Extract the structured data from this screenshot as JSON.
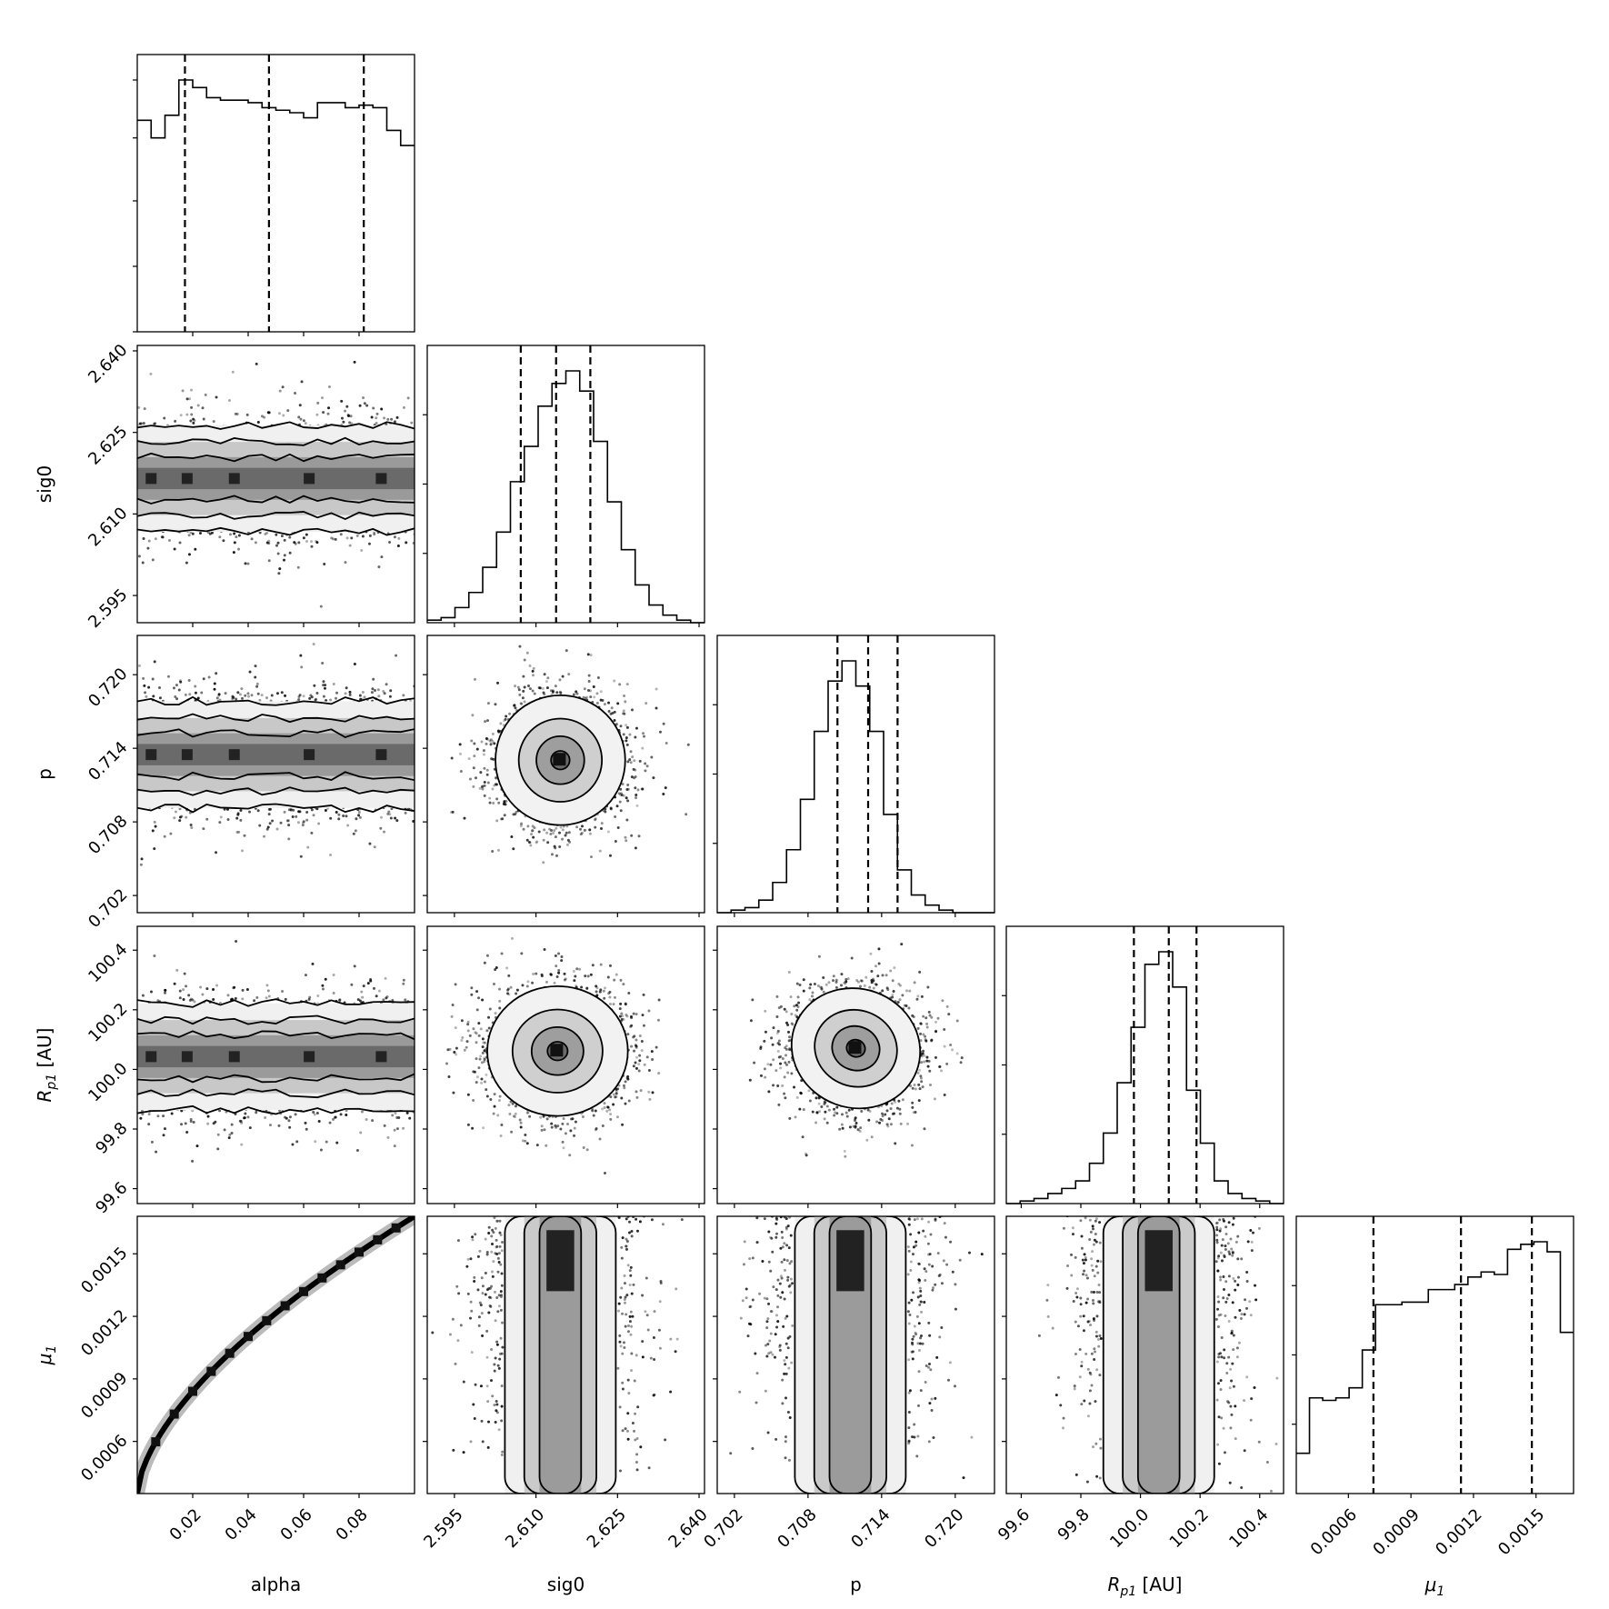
{
  "chart_data": {
    "type": "corner",
    "description_free": true,
    "parameters": [
      {
        "key": "alpha",
        "label": "alpha",
        "label_sub": "",
        "range": [
          0.0,
          0.1
        ],
        "ticks": [
          "0.02",
          "0.04",
          "0.06",
          "0.08"
        ],
        "tick_values": [
          0.02,
          0.04,
          0.06,
          0.08
        ],
        "quantiles": [
          0.0172,
          0.0475,
          0.0817
        ]
      },
      {
        "key": "sig0",
        "label": "sig0",
        "label_sub": "",
        "range": [
          2.59,
          2.641
        ],
        "ticks": [
          "2.595",
          "2.610",
          "2.625",
          "2.640"
        ],
        "tick_values": [
          2.595,
          2.61,
          2.625,
          2.64
        ],
        "quantiles": [
          2.6072,
          2.6137,
          2.62
        ]
      },
      {
        "key": "p",
        "label": "p",
        "label_sub": "",
        "range": [
          0.7006,
          0.7232
        ],
        "ticks": [
          "0.702",
          "0.708",
          "0.714",
          "0.720"
        ],
        "tick_values": [
          0.702,
          0.708,
          0.714,
          0.72
        ],
        "quantiles": [
          0.7104,
          0.7129,
          0.7153
        ]
      },
      {
        "key": "Rp1",
        "label": "R",
        "label_sub": "p1",
        "label_suffix": " [AU]",
        "range": [
          99.55,
          100.48
        ],
        "ticks": [
          "99.6",
          "99.8",
          "100.0",
          "100.2",
          "100.4"
        ],
        "tick_values": [
          99.6,
          99.8,
          100.0,
          100.2,
          100.4
        ],
        "quantiles": [
          99.978,
          100.095,
          100.188
        ]
      },
      {
        "key": "mu1",
        "label": "μ",
        "label_sub": "1",
        "range": [
          0.00035,
          0.00168
        ],
        "ticks": [
          "0.0006",
          "0.0009",
          "0.0012",
          "0.0015"
        ],
        "tick_values": [
          0.0006,
          0.0009,
          0.0012,
          0.0015
        ],
        "quantiles": [
          0.00072,
          0.00114,
          0.00148
        ]
      }
    ],
    "histograms": {
      "alpha": [
        0.84,
        0.77,
        0.86,
        1.0,
        0.97,
        0.93,
        0.92,
        0.92,
        0.91,
        0.89,
        0.88,
        0.87,
        0.85,
        0.91,
        0.91,
        0.89,
        0.9,
        0.89,
        0.8,
        0.74
      ],
      "sig0": [
        0.01,
        0.02,
        0.06,
        0.12,
        0.22,
        0.36,
        0.56,
        0.7,
        0.86,
        0.95,
        1.0,
        0.92,
        0.72,
        0.48,
        0.29,
        0.15,
        0.07,
        0.03,
        0.01,
        0.0
      ],
      "p": [
        0.0,
        0.01,
        0.02,
        0.05,
        0.12,
        0.25,
        0.45,
        0.72,
        0.92,
        1.0,
        0.9,
        0.72,
        0.39,
        0.17,
        0.07,
        0.03,
        0.01,
        0.0,
        0.0,
        0.0
      ],
      "Rp1": [
        0.0,
        0.01,
        0.02,
        0.04,
        0.06,
        0.09,
        0.16,
        0.28,
        0.48,
        0.7,
        0.95,
        1.0,
        0.86,
        0.45,
        0.24,
        0.09,
        0.04,
        0.02,
        0.01,
        0.0
      ],
      "mu1": [
        0.16,
        0.38,
        0.37,
        0.38,
        0.42,
        0.57,
        0.75,
        0.75,
        0.76,
        0.76,
        0.81,
        0.81,
        0.83,
        0.86,
        0.88,
        0.87,
        0.97,
        0.99,
        1.0,
        0.96,
        0.64
      ]
    },
    "correlations": {
      "alpha|sig0": 0.0,
      "alpha|p": 0.0,
      "alpha|Rp1": 0.0,
      "alpha|mu1": 0.99,
      "sig0|p": -0.05,
      "sig0|Rp1": 0.0,
      "sig0|mu1": 0.0,
      "p|Rp1": -0.08,
      "p|mu1": 0.0,
      "Rp1|mu1": 0.0
    },
    "grid": false,
    "legend": "none"
  }
}
